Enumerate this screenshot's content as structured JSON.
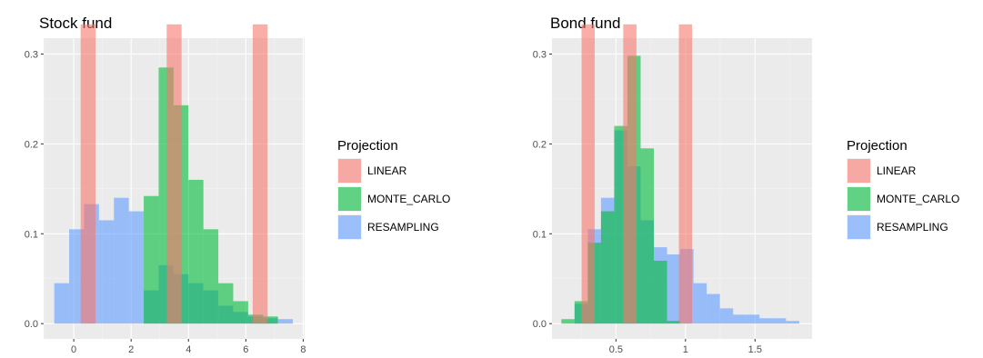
{
  "colors": {
    "panel_bg": "#ebebeb",
    "grid_major": "#ffffff",
    "grid_minor": "#f4f4f4",
    "axis_text": "#4d4d4d",
    "legend_key_bg": "#f2f2f2"
  },
  "legend": {
    "title": "Projection",
    "items": [
      {
        "label": "LINEAR",
        "color": "#f8766d"
      },
      {
        "label": "MONTE_CARLO",
        "color": "#00ba38"
      },
      {
        "label": "RESAMPLING",
        "color": "#619cff"
      }
    ]
  },
  "chart_data": [
    {
      "type": "bar",
      "title": "Stock fund",
      "xlabel": "",
      "ylabel": "",
      "xlim": [
        -1.05,
        8.05
      ],
      "ylim": [
        -0.017,
        0.35
      ],
      "xticks": [
        0,
        2,
        4,
        6,
        8
      ],
      "yticks": [
        0.0,
        0.1,
        0.2,
        0.3
      ],
      "ytick_labels": [
        "0.0",
        "0.1",
        "0.2",
        "0.3"
      ],
      "grid": true,
      "legend_position": "right",
      "bin_width": 0.52,
      "series": [
        {
          "name": "RESAMPLING",
          "x": [
            -0.42,
            0.1,
            0.62,
            1.14,
            1.66,
            2.18,
            2.7,
            3.22,
            3.74,
            4.26,
            4.78,
            5.3,
            5.82,
            6.34,
            6.86,
            7.38
          ],
          "values": [
            0.045,
            0.105,
            0.133,
            0.115,
            0.14,
            0.125,
            0.037,
            0.065,
            0.055,
            0.045,
            0.037,
            0.02,
            0.013,
            0.008,
            0.006,
            0.005
          ]
        },
        {
          "name": "MONTE_CARLO",
          "x": [
            2.7,
            3.22,
            3.74,
            4.26,
            4.78,
            5.3,
            5.82,
            6.34,
            6.86
          ],
          "values": [
            0.142,
            0.285,
            0.243,
            0.16,
            0.105,
            0.045,
            0.025,
            0.01,
            0.008
          ]
        },
        {
          "name": "LINEAR",
          "x": [
            0.5,
            3.5,
            6.5
          ],
          "values": [
            0.333,
            0.333,
            0.333
          ]
        }
      ]
    },
    {
      "type": "bar",
      "title": "Bond fund",
      "xlabel": "",
      "ylabel": "",
      "xlim": [
        0.04,
        1.91
      ],
      "ylim": [
        -0.017,
        0.35
      ],
      "xticks": [
        0.5,
        1.0,
        1.5
      ],
      "yticks": [
        0.0,
        0.1,
        0.2,
        0.3
      ],
      "ytick_labels": [
        "0.0",
        "0.1",
        "0.2",
        "0.3"
      ],
      "grid": true,
      "legend_position": "right",
      "bin_width": 0.095,
      "series": [
        {
          "name": "RESAMPLING",
          "x": [
            0.25,
            0.345,
            0.44,
            0.535,
            0.63,
            0.725,
            0.82,
            0.915,
            1.01,
            1.105,
            1.2,
            1.295,
            1.39,
            1.485,
            1.58,
            1.675,
            1.77
          ],
          "values": [
            0.022,
            0.105,
            0.14,
            0.215,
            0.175,
            0.115,
            0.085,
            0.077,
            0.083,
            0.045,
            0.033,
            0.017,
            0.01,
            0.01,
            0.006,
            0.006,
            0.003
          ]
        },
        {
          "name": "MONTE_CARLO",
          "x": [
            0.155,
            0.25,
            0.345,
            0.44,
            0.535,
            0.63,
            0.725,
            0.82,
            0.915
          ],
          "values": [
            0.005,
            0.025,
            0.09,
            0.125,
            0.22,
            0.298,
            0.195,
            0.07,
            0.003
          ]
        },
        {
          "name": "LINEAR",
          "x": [
            0.3,
            0.6,
            1.0
          ],
          "values": [
            0.333,
            0.333,
            0.333
          ]
        }
      ]
    }
  ]
}
